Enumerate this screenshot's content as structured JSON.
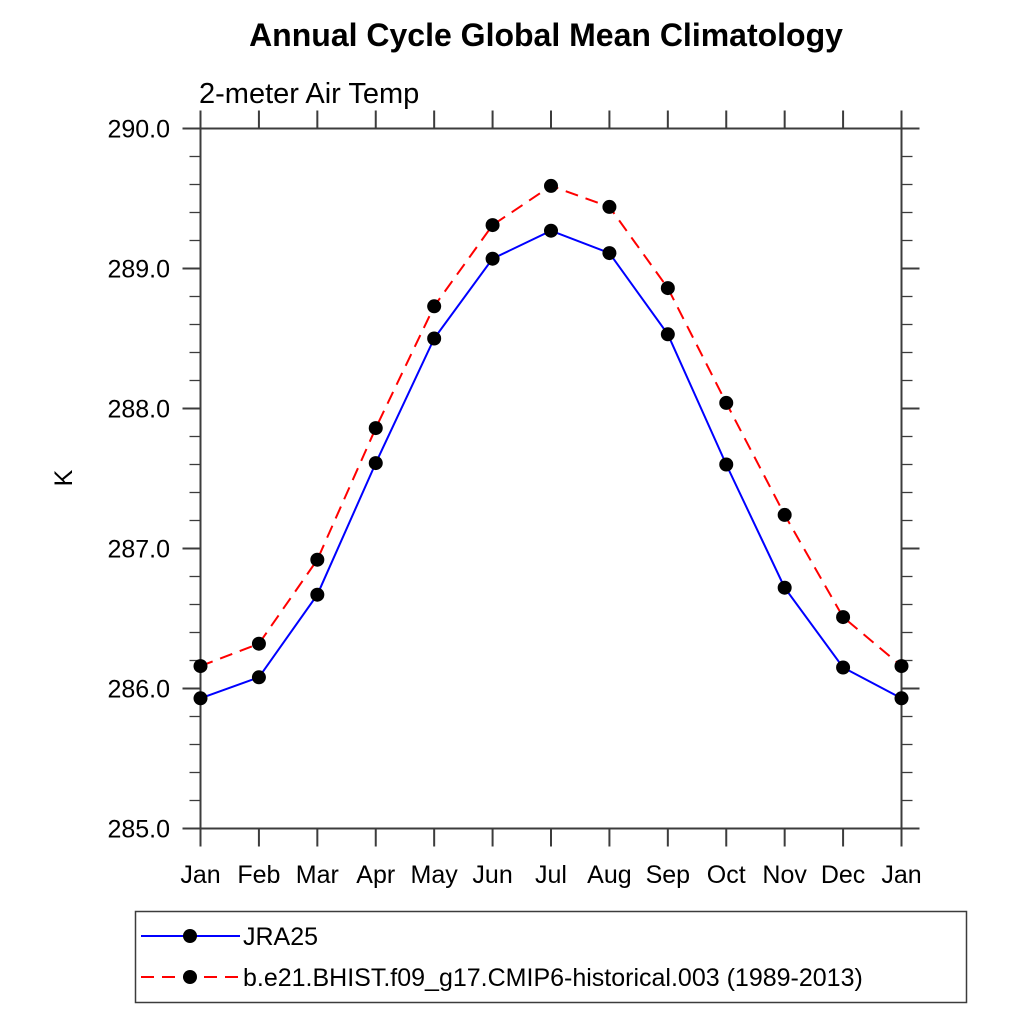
{
  "figure": {
    "title": "Annual Cycle Global Mean Climatology",
    "subtitle": "2-meter Air Temp",
    "y_axis_label": "K"
  },
  "chart_data": {
    "type": "line",
    "title": "Annual Cycle Global Mean Climatology",
    "subtitle": "2-meter Air Temp",
    "xlabel": "",
    "ylabel": "K",
    "categories": [
      "Jan",
      "Feb",
      "Mar",
      "Apr",
      "May",
      "Jun",
      "Jul",
      "Aug",
      "Sep",
      "Oct",
      "Nov",
      "Dec",
      "Jan"
    ],
    "series": [
      {
        "name": "JRA25",
        "line_color": "#0000ff",
        "line_style": "solid",
        "marker": "filled-circle",
        "marker_color": "#000000",
        "values": [
          285.93,
          286.08,
          286.67,
          287.61,
          288.5,
          289.07,
          289.27,
          289.11,
          288.53,
          287.6,
          286.72,
          286.15,
          285.93
        ]
      },
      {
        "name": "b.e21.BHIST.f09_g17.CMIP6-historical.003 (1989-2013)",
        "line_color": "#ff0000",
        "line_style": "dashed",
        "marker": "filled-circle",
        "marker_color": "#000000",
        "values": [
          286.16,
          286.32,
          286.92,
          287.86,
          288.73,
          289.31,
          289.59,
          289.44,
          288.86,
          288.04,
          287.24,
          286.51,
          286.16
        ]
      }
    ],
    "ylim": [
      285.0,
      290.0
    ],
    "y_tick_labels": [
      "285.0",
      "286.0",
      "287.0",
      "288.0",
      "289.0",
      "290.0"
    ],
    "y_major_tick_step": 1.0,
    "y_minor_tick_step": 0.2,
    "grid": false,
    "legend_position": "bottom-left",
    "axis_color": "#3c3c3c",
    "text_color": "#000000",
    "background_color": "#ffffff"
  }
}
